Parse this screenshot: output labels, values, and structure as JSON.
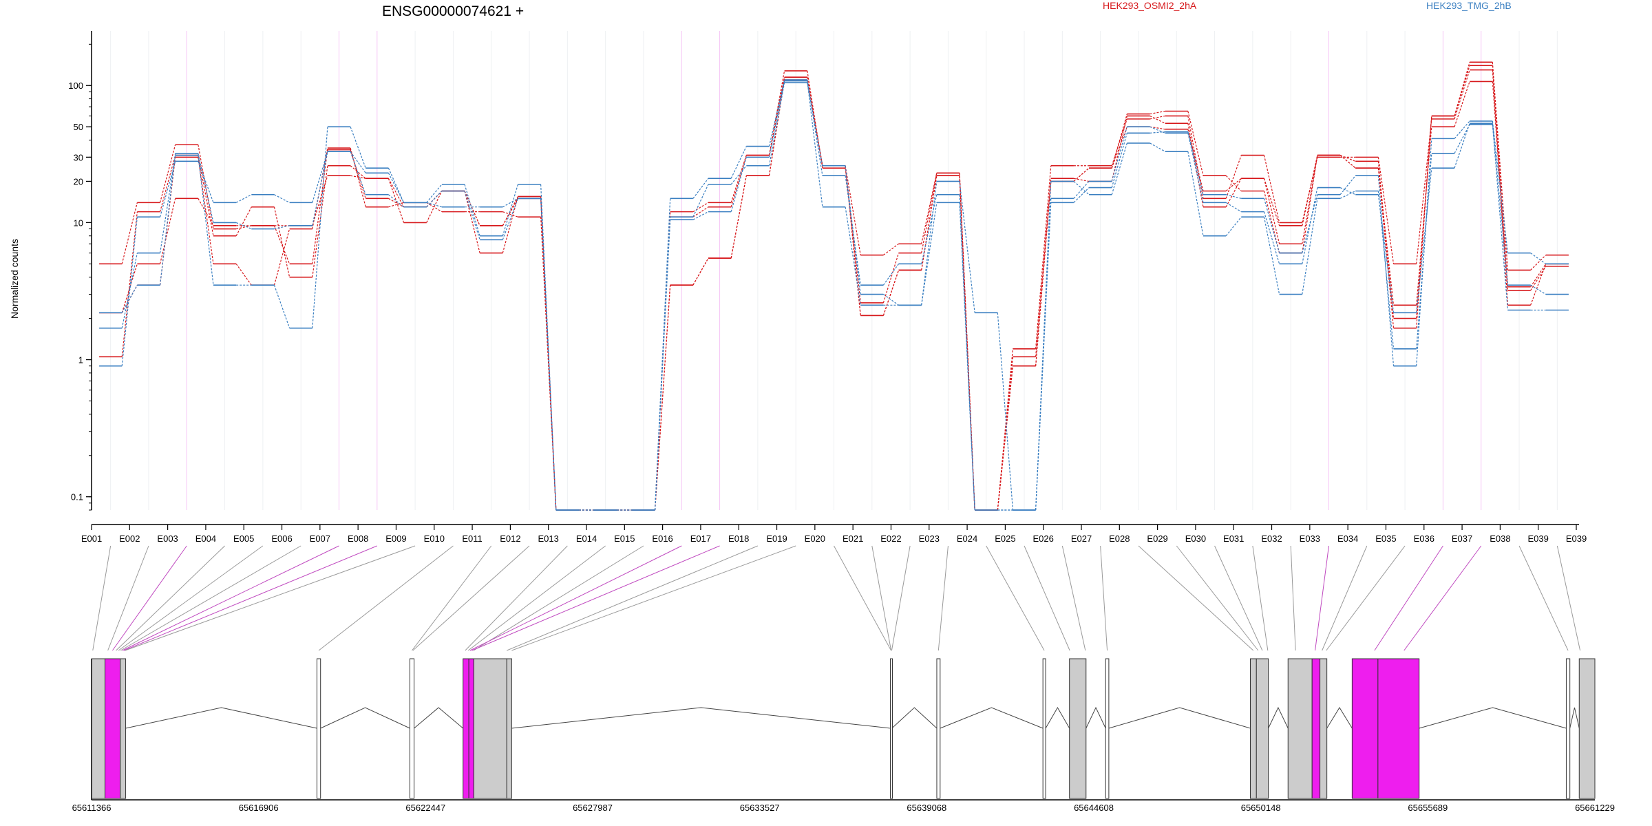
{
  "colors": {
    "red": "#d7191c",
    "blue": "#3a7fc1",
    "magenta": "#ee1eee",
    "gray": "#cccccc"
  },
  "legend": [
    {
      "name": "HEK293_OSMI2_2hA",
      "color": "#d7191c"
    },
    {
      "name": "HEK293_TMG_2hB",
      "color": "#3a7fc1"
    }
  ],
  "chart_data": {
    "type": "line",
    "title": "ENSG00000074621 +",
    "ylabel": "Normalized counts",
    "yscale": "log",
    "ylim": [
      0.08,
      250
    ],
    "ytick_labels": [
      "0.1",
      "1",
      "10",
      "20",
      "30",
      "50",
      "100"
    ],
    "ytick_values": [
      0.1,
      1,
      10,
      20,
      30,
      50,
      100
    ],
    "categories": [
      "E001",
      "E002",
      "E003",
      "E004",
      "E005",
      "E006",
      "E007",
      "E008",
      "E009",
      "E010",
      "E011",
      "E012",
      "E013",
      "E014",
      "E015",
      "E016",
      "E017",
      "E018",
      "E019",
      "E020",
      "E021",
      "E022",
      "E023",
      "E024",
      "E025",
      "E026",
      "E027",
      "E028",
      "E029",
      "E030",
      "E031",
      "E032",
      "E033",
      "E034",
      "E035",
      "E036",
      "E037",
      "E038",
      "E039"
    ],
    "highlighted_exons": [
      "E003",
      "E007",
      "E008",
      "E016",
      "E017",
      "E033",
      "E036",
      "E037"
    ],
    "series": [
      {
        "group": "HEK293_OSMI2_2hA",
        "color": "#d7191c",
        "values": [
          1.05,
          12,
          31,
          8,
          13,
          4,
          26,
          21,
          13,
          17,
          6,
          15.5,
          0.08,
          0.08,
          0.08,
          3.5,
          5.5,
          22,
          110,
          26,
          2.1,
          4.5,
          22,
          0.08,
          0.9,
          20,
          25,
          50,
          48,
          17,
          21,
          7,
          31,
          25,
          2.5,
          50,
          107,
          3.2,
          4.8
        ]
      },
      {
        "group": "HEK293_OSMI2_2hA",
        "color": "#d7191c",
        "values": [
          5,
          14,
          37,
          9,
          9.5,
          5,
          34,
          15,
          13,
          17,
          9.5,
          15,
          0.08,
          0.08,
          0.08,
          11,
          13,
          31,
          128,
          25,
          2.6,
          6,
          23,
          0.08,
          1.2,
          26,
          26,
          57,
          60,
          15,
          31,
          10,
          30,
          30,
          5,
          57,
          130,
          2.5,
          5
        ]
      },
      {
        "group": "HEK293_OSMI2_2hA",
        "color": "#d7191c",
        "values": [
          2.2,
          3.5,
          30,
          5,
          3.5,
          9,
          35,
          13,
          14,
          12,
          12,
          11,
          0.08,
          0.08,
          0.08,
          12,
          14,
          31,
          115,
          26,
          5.8,
          7,
          23,
          0.08,
          1.05,
          21,
          20,
          60,
          53,
          13,
          21,
          9.5,
          31,
          28,
          2,
          60,
          148,
          4.5,
          5.8
        ]
      },
      {
        "group": "HEK293_OSMI2_2hA",
        "color": "#d7191c",
        "values": [
          2.2,
          5,
          15,
          9.5,
          9.5,
          9.5,
          22,
          21,
          10,
          17,
          9.5,
          15.5,
          0.08,
          0.08,
          0.08,
          3.5,
          5.5,
          22,
          115,
          26,
          2.1,
          4.5,
          22,
          0.08,
          0.9,
          20,
          25,
          62,
          65,
          22,
          17,
          6,
          31,
          25,
          1.7,
          60,
          140,
          3.4,
          5
        ]
      },
      {
        "group": "HEK293_TMG_2hB",
        "color": "#3a7fc1",
        "values": [
          1.7,
          6,
          31,
          3.5,
          3.5,
          1.7,
          50,
          25,
          14,
          19,
          8,
          19,
          0.08,
          0.08,
          0.08,
          15,
          21,
          36,
          110,
          22,
          3.5,
          5,
          16,
          0.08,
          0.08,
          14,
          18,
          45,
          46,
          16,
          15,
          6,
          16,
          22,
          0.9,
          41,
          55,
          6,
          5
        ]
      },
      {
        "group": "HEK293_TMG_2hB",
        "color": "#3a7fc1",
        "values": [
          0.9,
          11,
          28,
          14,
          16,
          14,
          33,
          23,
          14,
          13,
          13,
          15,
          0.08,
          0.08,
          0.08,
          11,
          19,
          26,
          105,
          26,
          3,
          2.5,
          20,
          2.2,
          0.08,
          15,
          20,
          50,
          45,
          14,
          12,
          5,
          18,
          16,
          2.2,
          25,
          53,
          3.5,
          3
        ]
      },
      {
        "group": "HEK293_TMG_2hB",
        "color": "#3a7fc1",
        "values": [
          2.2,
          3.5,
          32,
          10,
          9,
          9.5,
          33,
          16,
          13,
          17,
          7.5,
          15,
          0.08,
          0.08,
          0.08,
          10.5,
          12,
          30,
          108,
          13,
          2.5,
          2.5,
          14,
          0.08,
          0.08,
          20,
          16,
          38,
          33,
          8,
          11,
          3,
          15,
          17,
          1.2,
          32,
          52,
          2.3,
          2.3
        ]
      }
    ]
  },
  "gene_model": {
    "coordinate_labels": [
      "65611366",
      "65616906",
      "65622447",
      "65627987",
      "65633527",
      "65639068",
      "65644608",
      "65650148",
      "65655689",
      "65661229"
    ],
    "coordinate_values": [
      65611366,
      65616906,
      65622447,
      65627987,
      65633527,
      65639068,
      65644608,
      65650148,
      65655689,
      65661229
    ]
  }
}
